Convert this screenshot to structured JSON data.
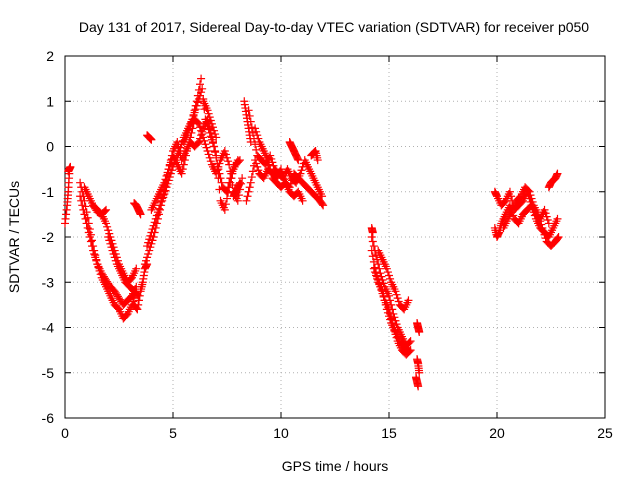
{
  "chart_data": {
    "type": "scatter",
    "title": "Day 131 of 2017, Sidereal Day-to-day VTEC variation (SDTVAR) for receiver p050",
    "xlabel": "GPS time / hours",
    "ylabel": "SDTVAR / TECUs",
    "xlim": [
      0,
      25
    ],
    "ylim": [
      -6,
      2
    ],
    "xticks": [
      0,
      5,
      10,
      15,
      20,
      25
    ],
    "yticks": [
      -6,
      -5,
      -4,
      -3,
      -2,
      -1,
      0,
      1,
      2
    ],
    "grid": true,
    "marker": "plus",
    "color": "#ff0000",
    "series": [
      {
        "name": "SDTVAR",
        "segments": [
          {
            "x": [
              0.0,
              0.1,
              0.15,
              0.2
            ],
            "y": [
              -1.7,
              -1.3,
              -1.0,
              -0.6
            ]
          },
          {
            "x": [
              0.15,
              0.2,
              0.25
            ],
            "y": [
              -0.55,
              -0.5,
              -0.45
            ]
          },
          {
            "x": [
              0.7,
              0.9,
              1.1,
              1.3,
              1.5,
              1.7,
              1.9,
              2.1,
              2.3,
              2.5,
              2.7,
              2.9,
              3.1,
              3.3
            ],
            "y": [
              -0.8,
              -1.2,
              -1.7,
              -2.2,
              -2.6,
              -2.9,
              -3.1,
              -3.3,
              -3.5,
              -3.6,
              -3.8,
              -3.7,
              -3.5,
              -3.2
            ]
          },
          {
            "x": [
              0.7,
              0.9,
              1.1,
              1.3,
              1.5,
              1.7,
              1.9,
              2.1,
              2.3,
              2.5,
              2.7,
              2.9,
              3.1,
              3.3
            ],
            "y": [
              -1.1,
              -1.5,
              -1.9,
              -2.3,
              -2.6,
              -2.8,
              -2.95,
              -3.1,
              -3.2,
              -3.35,
              -3.5,
              -3.4,
              -3.3,
              -3.1
            ]
          },
          {
            "x": [
              0.9,
              1.1,
              1.3,
              1.5,
              1.7,
              1.9,
              2.1,
              2.3,
              2.5,
              2.7,
              2.9,
              3.1,
              3.3
            ],
            "y": [
              -0.9,
              -1.1,
              -1.3,
              -1.4,
              -1.5,
              -1.7,
              -2.0,
              -2.3,
              -2.6,
              -2.8,
              -3.0,
              -2.9,
              -2.7
            ]
          },
          {
            "x": [
              1.3,
              1.5,
              1.7,
              1.9
            ],
            "y": [
              -1.3,
              -1.45,
              -1.5,
              -1.4
            ]
          },
          {
            "x": [
              2.0,
              2.2,
              2.4,
              2.6,
              2.8,
              3.0,
              3.2,
              3.4
            ],
            "y": [
              -2.0,
              -2.3,
              -2.6,
              -2.8,
              -3.0,
              -3.1,
              -3.2,
              -3.3
            ]
          },
          {
            "x": [
              3.2,
              3.35,
              3.5,
              3.6,
              3.7,
              3.8
            ],
            "y": [
              -3.5,
              -3.6,
              -3.2,
              -3.0,
              -2.7,
              -2.6
            ]
          },
          {
            "x": [
              3.2,
              3.3,
              3.4,
              3.5
            ],
            "y": [
              -1.25,
              -1.3,
              -1.4,
              -1.5
            ]
          },
          {
            "x": [
              3.8,
              3.9,
              4.0
            ],
            "y": [
              0.25,
              0.2,
              0.15
            ]
          },
          {
            "x": [
              3.7,
              3.9,
              4.1,
              4.3,
              4.5,
              4.7,
              4.9,
              5.1,
              5.3,
              5.5,
              5.7,
              5.9,
              6.1,
              6.3,
              6.5,
              6.7,
              6.9,
              7.1,
              7.3,
              7.5,
              7.7,
              7.9,
              8.1
            ],
            "y": [
              -2.6,
              -2.3,
              -2.0,
              -1.6,
              -1.2,
              -0.9,
              -0.6,
              -0.3,
              -0.1,
              0.2,
              0.4,
              0.6,
              1.0,
              1.5,
              0.6,
              0.3,
              0.0,
              -0.5,
              -0.9,
              -1.0,
              -0.6,
              -0.4,
              -0.3
            ]
          },
          {
            "x": [
              3.8,
              4.0,
              4.2,
              4.4,
              4.6,
              4.8,
              5.0,
              5.2,
              5.4,
              5.6,
              5.8,
              6.0,
              6.2,
              6.4,
              6.6,
              6.8,
              7.0,
              7.2,
              7.4,
              7.6,
              7.8,
              8.0
            ],
            "y": [
              -2.2,
              -1.9,
              -1.6,
              -1.3,
              -1.0,
              -0.5,
              -0.1,
              0.1,
              -0.3,
              -0.1,
              0.1,
              0.0,
              0.1,
              0.4,
              0.6,
              0.2,
              -0.2,
              -1.2,
              -1.4,
              -0.9,
              -0.5,
              -0.3
            ]
          },
          {
            "x": [
              4.0,
              4.2,
              4.4,
              4.6,
              4.8,
              5.0,
              5.2,
              5.4,
              5.6,
              5.8,
              6.0,
              6.2,
              6.4,
              6.6,
              6.8,
              7.0,
              7.2,
              7.4,
              7.6,
              7.8,
              8.0,
              8.2
            ],
            "y": [
              -1.4,
              -1.2,
              -1.0,
              -0.8,
              -0.5,
              -0.2,
              -0.4,
              -0.6,
              -0.2,
              0.2,
              0.6,
              0.5,
              0.2,
              -0.1,
              -0.4,
              -0.6,
              -0.3,
              -0.1,
              -0.4,
              -1.0,
              -1.2,
              -0.7
            ]
          },
          {
            "x": [
              5.5,
              5.7,
              5.9,
              6.1,
              6.3
            ],
            "y": [
              0.1,
              0.3,
              0.6,
              0.9,
              1.2
            ]
          },
          {
            "x": [
              6.4,
              6.6,
              6.8,
              7.0
            ],
            "y": [
              1.0,
              0.8,
              0.5,
              0.2
            ]
          },
          {
            "x": [
              7.8,
              7.9,
              8.0,
              8.1
            ],
            "y": [
              -1.1,
              -1.0,
              -0.9,
              -0.8
            ]
          },
          {
            "x": [
              8.3,
              8.4,
              8.5,
              8.6
            ],
            "y": [
              1.0,
              0.7,
              0.4,
              0.1
            ]
          },
          {
            "x": [
              8.4,
              8.6,
              8.8,
              9.0,
              9.2,
              9.4,
              9.6,
              9.8,
              10.0,
              10.2,
              10.4,
              10.6,
              10.8,
              11.0,
              11.2,
              11.4,
              11.6,
              11.8,
              11.95
            ],
            "y": [
              -1.2,
              -0.8,
              -0.3,
              -0.6,
              -0.7,
              -0.5,
              -0.6,
              -0.7,
              -0.5,
              -0.8,
              -0.9,
              -0.6,
              -0.7,
              -0.8,
              -0.9,
              -1.0,
              -1.1,
              -1.2,
              -1.3
            ]
          },
          {
            "x": [
              8.5,
              8.7,
              8.9,
              9.1,
              9.3,
              9.5,
              9.7,
              9.9,
              10.1,
              10.3,
              10.5,
              10.7,
              10.9,
              11.1,
              11.3,
              11.5,
              11.7,
              11.9
            ],
            "y": [
              0.8,
              0.3,
              -0.2,
              -0.3,
              -0.4,
              -0.2,
              -0.5,
              -0.6,
              -0.7,
              -0.5,
              -0.7,
              -0.8,
              -0.6,
              -0.3,
              -0.5,
              -0.7,
              -0.9,
              -1.1
            ]
          },
          {
            "x": [
              8.8,
              9.0,
              9.2,
              9.4,
              9.6,
              9.8,
              10.0,
              10.2,
              10.4,
              10.6,
              10.8,
              11.0
            ],
            "y": [
              0.4,
              0.1,
              -0.1,
              -0.3,
              -0.7,
              -0.8,
              -0.9,
              -0.8,
              -1.0,
              -1.1,
              -1.0,
              -1.2
            ]
          },
          {
            "x": [
              10.4,
              10.5,
              10.6,
              10.7,
              10.8
            ],
            "y": [
              0.1,
              0.0,
              -0.1,
              -0.2,
              -0.3
            ]
          },
          {
            "x": [
              11.4,
              11.5,
              11.6,
              11.7
            ],
            "y": [
              -0.2,
              -0.15,
              -0.1,
              -0.3
            ]
          },
          {
            "x": [
              14.2,
              14.4,
              14.6,
              14.8,
              15.0,
              15.2,
              15.4,
              15.6,
              15.8,
              16.0
            ],
            "y": [
              -2.3,
              -2.8,
              -3.1,
              -3.4,
              -3.6,
              -4.0,
              -4.3,
              -4.5,
              -4.6,
              -4.5
            ]
          },
          {
            "x": [
              14.2,
              14.4,
              14.6,
              14.8,
              15.0,
              15.2,
              15.4,
              15.6,
              15.8,
              16.0
            ],
            "y": [
              -2.0,
              -2.4,
              -2.8,
              -3.1,
              -3.3,
              -3.7,
              -4.0,
              -4.2,
              -4.4,
              -4.3
            ]
          },
          {
            "x": [
              14.3,
              14.5,
              14.7,
              14.9,
              15.1,
              15.3,
              15.5,
              15.7,
              15.9
            ],
            "y": [
              -2.7,
              -3.0,
              -3.2,
              -3.6,
              -3.9,
              -4.1,
              -4.3,
              -4.4,
              -4.5
            ]
          },
          {
            "x": [
              14.5,
              14.7,
              14.9,
              15.1,
              15.3,
              15.5,
              15.7,
              15.9
            ],
            "y": [
              -2.3,
              -2.5,
              -2.7,
              -3.0,
              -3.2,
              -3.5,
              -3.6,
              -3.4
            ]
          },
          {
            "x": [
              14.2,
              14.25
            ],
            "y": [
              -1.8,
              -1.9
            ]
          },
          {
            "x": [
              16.3,
              16.35,
              16.4
            ],
            "y": [
              -3.9,
              -4.0,
              -4.1
            ]
          },
          {
            "x": [
              16.3,
              16.35,
              16.4
            ],
            "y": [
              -4.7,
              -4.8,
              -5.0
            ]
          },
          {
            "x": [
              16.25,
              16.3,
              16.35
            ],
            "y": [
              -5.1,
              -5.2,
              -5.3
            ]
          },
          {
            "x": [
              19.9,
              20.0,
              20.1,
              20.2,
              20.4,
              20.6,
              20.8,
              21.0,
              21.2,
              21.4,
              21.6,
              21.8,
              22.0,
              22.2,
              22.4,
              22.6,
              22.8
            ],
            "y": [
              -1.8,
              -2.0,
              -1.9,
              -1.7,
              -1.5,
              -1.3,
              -1.6,
              -1.7,
              -1.5,
              -1.4,
              -1.3,
              -1.6,
              -1.8,
              -1.9,
              -2.0,
              -1.8,
              -1.6
            ]
          },
          {
            "x": [
              19.9,
              20.0,
              20.2,
              20.4,
              20.6,
              20.8,
              21.0,
              21.2,
              21.4,
              21.6,
              21.8,
              22.0,
              22.2,
              22.4
            ],
            "y": [
              -1.0,
              -1.1,
              -1.3,
              -1.2,
              -1.0,
              -1.4,
              -1.3,
              -1.2,
              -1.0,
              -1.3,
              -1.5,
              -1.6,
              -1.4,
              -1.7
            ]
          },
          {
            "x": [
              20.3,
              20.5,
              20.7,
              20.9,
              21.1,
              21.3,
              21.5,
              21.7,
              21.9,
              22.1,
              22.3,
              22.5,
              22.7,
              22.85
            ],
            "y": [
              -1.8,
              -1.6,
              -1.4,
              -1.2,
              -1.1,
              -0.9,
              -1.0,
              -1.3,
              -1.5,
              -1.8,
              -2.1,
              -2.2,
              -2.1,
              -2.0
            ]
          },
          {
            "x": [
              22.4,
              22.5,
              22.6,
              22.7,
              22.8
            ],
            "y": [
              -0.9,
              -0.8,
              -0.75,
              -0.7,
              -0.6
            ]
          }
        ]
      }
    ]
  }
}
